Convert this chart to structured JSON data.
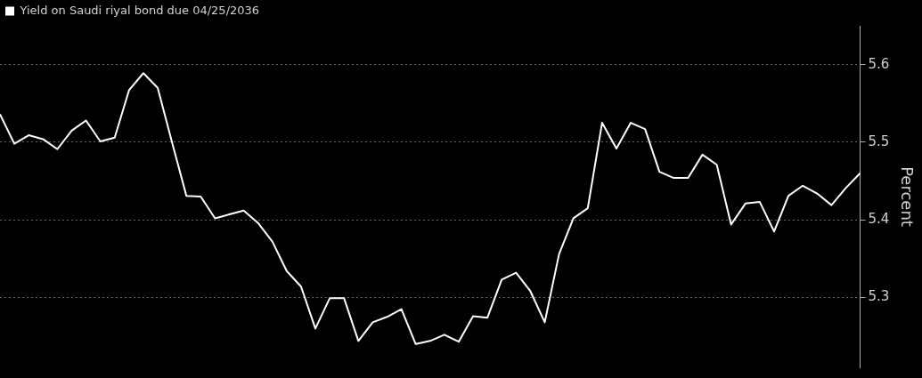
{
  "chart_data": {
    "type": "line",
    "categories": [
      null,
      null,
      null,
      null,
      null,
      null,
      null,
      null,
      null,
      null,
      null,
      null,
      null,
      null,
      null,
      null,
      null,
      null,
      null,
      null,
      null,
      null,
      null,
      null,
      null,
      null,
      null,
      null,
      null,
      null,
      null,
      null,
      null,
      null,
      null,
      null,
      null,
      null,
      null,
      null,
      null,
      null,
      null,
      null,
      null,
      null,
      null,
      null,
      null,
      null,
      null,
      null,
      null,
      null,
      null,
      null,
      null,
      null,
      null,
      null,
      null
    ],
    "series": [
      {
        "name": "Yield on Saudi riyal bond due 04/25/2036",
        "color": "#ffffff",
        "values": [
          5.536,
          5.498,
          5.509,
          5.504,
          5.491,
          5.515,
          5.528,
          5.501,
          5.506,
          5.567,
          5.589,
          5.57,
          5.5,
          5.431,
          5.43,
          5.402,
          5.407,
          5.412,
          5.396,
          5.372,
          5.334,
          5.314,
          5.26,
          5.299,
          5.299,
          5.244,
          5.268,
          5.275,
          5.285,
          5.24,
          5.244,
          5.252,
          5.243,
          5.276,
          5.274,
          5.323,
          5.332,
          5.308,
          5.268,
          5.356,
          5.402,
          5.415,
          5.525,
          5.492,
          5.525,
          5.517,
          5.462,
          5.454,
          5.454,
          5.484,
          5.471,
          5.394,
          5.421,
          5.423,
          5.385,
          5.431,
          5.444,
          5.434,
          5.419,
          5.441,
          5.46
        ]
      }
    ],
    "ylabel": "Percent",
    "ylim": [
      5.21,
      5.65
    ],
    "yticks": [
      5.3,
      5.4,
      5.5,
      5.6
    ],
    "grid": "y",
    "legend": "top left",
    "tick_labels": "y",
    "marker": "none",
    "line_style": "solid"
  }
}
